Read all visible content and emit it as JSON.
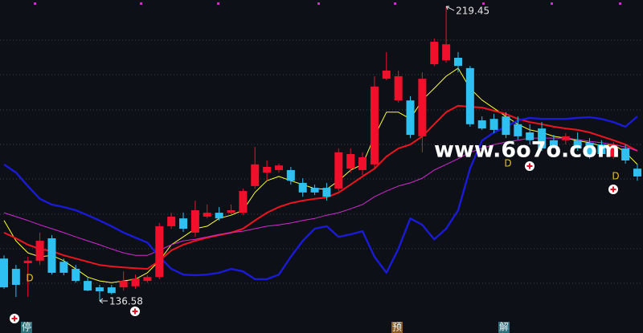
{
  "chart_data": {
    "type": "candlestick",
    "ylim": [
      127.55,
      221.26
    ],
    "up_color": "#f0102c",
    "down_color": "#2ec0f0",
    "open": [
      148.5,
      145.6,
      147.2,
      147.9,
      154.2,
      147.6,
      145.6,
      142.2,
      140.4,
      140.4,
      140.4,
      140.7,
      142.2,
      143.3,
      157.6,
      159.8,
      155.8,
      160.3,
      161.4,
      161.4,
      161.4,
      168.9,
      172.7,
      173.4,
      173.4,
      169.8,
      168.4,
      168.4,
      168.2,
      173.8,
      173.4,
      175.0,
      199.1,
      193.0,
      193.0,
      182.9,
      203.2,
      204.3,
      205.0,
      202.1,
      187.4,
      187.8,
      188.5,
      186.3,
      184.0,
      185.1,
      181.8,
      181.8,
      181.8,
      181.1,
      180.6,
      177.2,
      179.5,
      173.8
    ],
    "high": [
      149.4,
      146.7,
      149.0,
      155.8,
      155.1,
      148.5,
      146.7,
      143.3,
      141.1,
      141.1,
      144.9,
      144.0,
      143.8,
      158.5,
      161.4,
      161.4,
      164.8,
      163.7,
      163.0,
      163.7,
      168.2,
      179.9,
      176.1,
      175.2,
      174.3,
      171.1,
      169.3,
      169.8,
      179.5,
      179.5,
      178.4,
      199.8,
      206.6,
      201.4,
      194.2,
      200.9,
      210.4,
      219.45,
      206.6,
      202.7,
      188.5,
      189.2,
      189.7,
      188.5,
      186.3,
      186.9,
      183.3,
      183.8,
      184.0,
      182.4,
      181.8,
      181.3,
      180.6,
      175.0
    ],
    "low": [
      140.0,
      137.7,
      137.7,
      146.7,
      144.0,
      143.8,
      141.7,
      139.3,
      136.58,
      138.4,
      139.5,
      140.0,
      141.7,
      142.7,
      156.9,
      156.0,
      154.6,
      159.8,
      159.2,
      160.7,
      160.7,
      168.2,
      170.4,
      172.7,
      169.3,
      165.9,
      166.4,
      164.8,
      167.5,
      172.7,
      172.0,
      173.8,
      198.7,
      192.4,
      182.4,
      178.4,
      202.7,
      203.6,
      200.9,
      185.6,
      184.7,
      183.8,
      182.4,
      182.0,
      180.6,
      178.8,
      179.5,
      180.6,
      178.8,
      176.6,
      177.2,
      176.6,
      175.2,
      170.4
    ],
    "close": [
      140.4,
      141.1,
      147.9,
      153.5,
      144.5,
      144.5,
      142.2,
      139.5,
      139.3,
      138.8,
      142.2,
      142.9,
      143.3,
      157.6,
      160.3,
      156.9,
      162.1,
      161.4,
      159.8,
      162.1,
      167.5,
      175.0,
      174.3,
      174.7,
      170.4,
      167.1,
      167.1,
      165.9,
      178.4,
      177.9,
      177.0,
      196.9,
      201.4,
      199.8,
      183.3,
      199.1,
      209.5,
      208.8,
      202.7,
      186.3,
      185.1,
      184.7,
      183.3,
      182.9,
      181.8,
      179.5,
      180.2,
      182.9,
      179.5,
      177.2,
      177.9,
      180.6,
      176.1,
      171.6
    ],
    "series": [
      {
        "color": "#ffff30",
        "width": 1,
        "values": [
          159.2,
          153.5,
          150.1,
          149.0,
          149.4,
          147.9,
          145.6,
          143.3,
          142.2,
          141.7,
          142.2,
          142.7,
          144.5,
          147.9,
          152.4,
          154.6,
          156.9,
          157.6,
          159.8,
          160.7,
          162.1,
          167.1,
          170.4,
          171.6,
          170.4,
          169.3,
          168.2,
          168.0,
          170.4,
          173.4,
          175.0,
          182.9,
          189.7,
          189.7,
          187.8,
          193.1,
          196.4,
          199.8,
          202.1,
          196.4,
          193.1,
          190.8,
          188.5,
          186.3,
          184.7,
          184.0,
          182.9,
          182.4,
          181.7,
          181.1,
          180.2,
          180.6,
          178.4,
          175.0
        ]
      },
      {
        "color": "#ee1520",
        "width": 2,
        "values": [
          155.8,
          154.2,
          152.4,
          151.2,
          150.6,
          149.4,
          148.5,
          147.6,
          146.7,
          146.3,
          146.0,
          145.8,
          145.6,
          147.9,
          150.8,
          152.4,
          153.5,
          154.4,
          155.1,
          155.8,
          156.9,
          159.2,
          161.4,
          163.0,
          164.1,
          164.8,
          165.3,
          165.7,
          167.1,
          169.3,
          171.6,
          173.8,
          177.2,
          179.5,
          180.6,
          182.9,
          186.3,
          189.7,
          191.5,
          191.2,
          191.0,
          190.1,
          189.2,
          187.8,
          186.9,
          186.3,
          185.6,
          185.1,
          184.7,
          184.0,
          182.9,
          181.8,
          180.6,
          178.8
        ]
      },
      {
        "color": "#d22ad2",
        "width": 1,
        "values": [
          161.4,
          160.3,
          159.2,
          158.0,
          156.9,
          155.8,
          154.6,
          153.5,
          152.4,
          151.2,
          150.1,
          149.4,
          149.4,
          150.8,
          152.4,
          153.5,
          153.9,
          154.6,
          155.3,
          155.8,
          156.2,
          156.9,
          157.6,
          158.0,
          158.5,
          159.2,
          159.8,
          160.7,
          161.4,
          162.5,
          163.7,
          165.9,
          167.5,
          168.9,
          169.8,
          171.1,
          173.4,
          175.0,
          176.6,
          178.4,
          179.5,
          180.6,
          181.3,
          181.8,
          182.4,
          182.4,
          182.4,
          182.4,
          182.0,
          181.5,
          181.1,
          180.6,
          179.9,
          178.8
        ]
      },
      {
        "color": "#1a1ad8",
        "width": 2.4,
        "values": [
          175.0,
          172.7,
          168.9,
          165.3,
          163.7,
          163.0,
          162.1,
          160.7,
          159.2,
          157.6,
          155.8,
          154.4,
          153.0,
          149.0,
          145.6,
          144.0,
          143.8,
          144.0,
          144.5,
          145.6,
          144.9,
          142.7,
          142.7,
          144.0,
          149.0,
          153.5,
          156.9,
          157.6,
          154.6,
          155.3,
          156.2,
          149.0,
          144.5,
          151.2,
          159.8,
          158.0,
          153.9,
          156.9,
          162.1,
          173.8,
          181.7,
          184.0,
          185.6,
          187.4,
          188.1,
          187.8,
          187.8,
          187.8,
          188.1,
          188.3,
          187.8,
          186.9,
          185.6,
          188.5
        ]
      }
    ],
    "annotations": [
      "219.45",
      "136.58"
    ],
    "markers": [
      "D",
      "D",
      "D"
    ],
    "bottom_labels": [
      "停",
      "预",
      "解"
    ],
    "watermark": "www.6o7o.com"
  }
}
